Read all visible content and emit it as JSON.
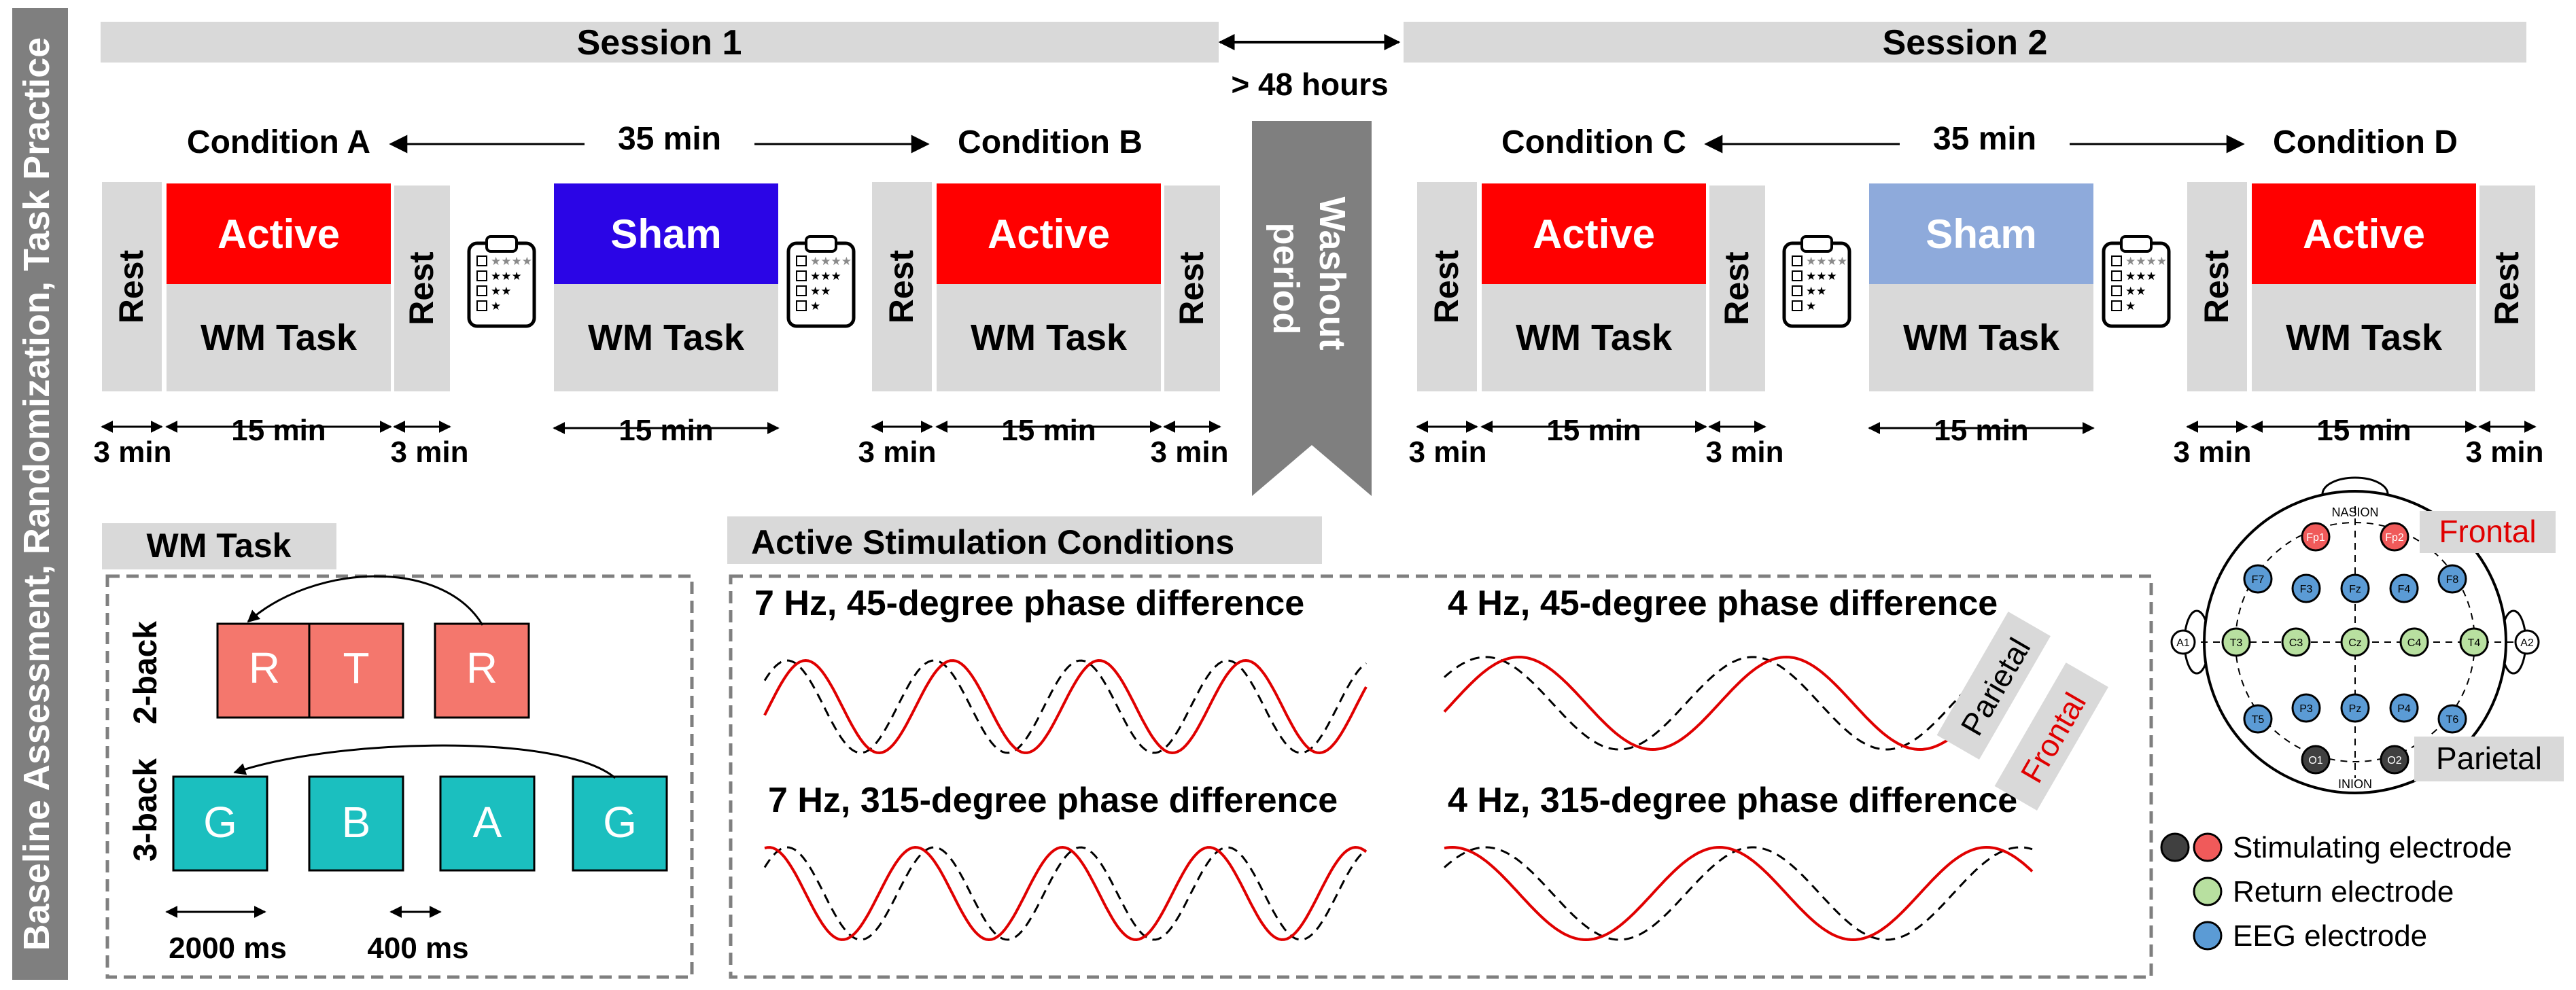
{
  "side_label": "Baseline Assessment, Randomization, Task Practice",
  "sessions": [
    {
      "title": "Session 1"
    },
    {
      "title": "Session 2"
    }
  ],
  "washout": {
    "gap": "> 48 hours",
    "line1": "Washout",
    "line2": "period"
  },
  "conditions": [
    "Condition A",
    "Condition B",
    "Condition C",
    "Condition D"
  ],
  "interval": "35 min",
  "blocks": {
    "rest": "Rest",
    "active": "Active",
    "sham": "Sham",
    "task": "WM Task"
  },
  "durations": {
    "three": "3 min",
    "fifteen": "15 min"
  },
  "colors": {
    "active": "#ff0000",
    "sham_session1": "#2b05e6",
    "sham_session2": "#8eaadb",
    "rest": "#d9d9d9",
    "washout": "#7f7f7f",
    "header_bar": "#d9d9d9",
    "two_back": "#f4776d",
    "three_back": "#1bbfbf",
    "stim": "#f05a5a",
    "return": "#b8e0a0",
    "eeg": "#5b9bd5",
    "parietal_stim": "#404040"
  },
  "wm_panel": {
    "title": "WM Task",
    "two_back": {
      "label": "2-back",
      "letters": [
        "R",
        "T",
        "R"
      ]
    },
    "three_back": {
      "label": "3-back",
      "letters": [
        "G",
        "B",
        "A",
        "G"
      ]
    },
    "stim_duration": "2000 ms",
    "isi": "400 ms"
  },
  "stim_panel": {
    "title": "Active Stimulation Conditions",
    "subplots": [
      {
        "title": "7 Hz, 45-degree phase difference"
      },
      {
        "title": "4 Hz, 45-degree phase difference"
      },
      {
        "title": "7 Hz, 315-degree phase difference"
      },
      {
        "title": "4 Hz, 315-degree phase difference"
      }
    ],
    "tag_parietal": "Parietal",
    "tag_frontal": "Frontal"
  },
  "head_map": {
    "nasion": "NASION",
    "inion": "INION",
    "frontal_label": "Frontal",
    "parietal_label": "Parietal",
    "electrodes": [
      {
        "id": "Fp1",
        "type": "stim"
      },
      {
        "id": "Fp2",
        "type": "stim"
      },
      {
        "id": "F7",
        "type": "eeg"
      },
      {
        "id": "F3",
        "type": "eeg"
      },
      {
        "id": "Fz",
        "type": "eeg"
      },
      {
        "id": "F4",
        "type": "eeg"
      },
      {
        "id": "F8",
        "type": "eeg"
      },
      {
        "id": "A1",
        "type": "ref"
      },
      {
        "id": "T3",
        "type": "return"
      },
      {
        "id": "C3",
        "type": "return"
      },
      {
        "id": "Cz",
        "type": "return"
      },
      {
        "id": "C4",
        "type": "return"
      },
      {
        "id": "T4",
        "type": "return"
      },
      {
        "id": "A2",
        "type": "ref"
      },
      {
        "id": "T5",
        "type": "eeg"
      },
      {
        "id": "P3",
        "type": "eeg"
      },
      {
        "id": "Pz",
        "type": "eeg"
      },
      {
        "id": "P4",
        "type": "eeg"
      },
      {
        "id": "T6",
        "type": "eeg"
      },
      {
        "id": "O1",
        "type": "parietal_stim"
      },
      {
        "id": "O2",
        "type": "parietal_stim"
      }
    ]
  },
  "legend": {
    "stimulating": "Stimulating electrode",
    "return": "Return electrode",
    "eeg": "EEG electrode"
  }
}
